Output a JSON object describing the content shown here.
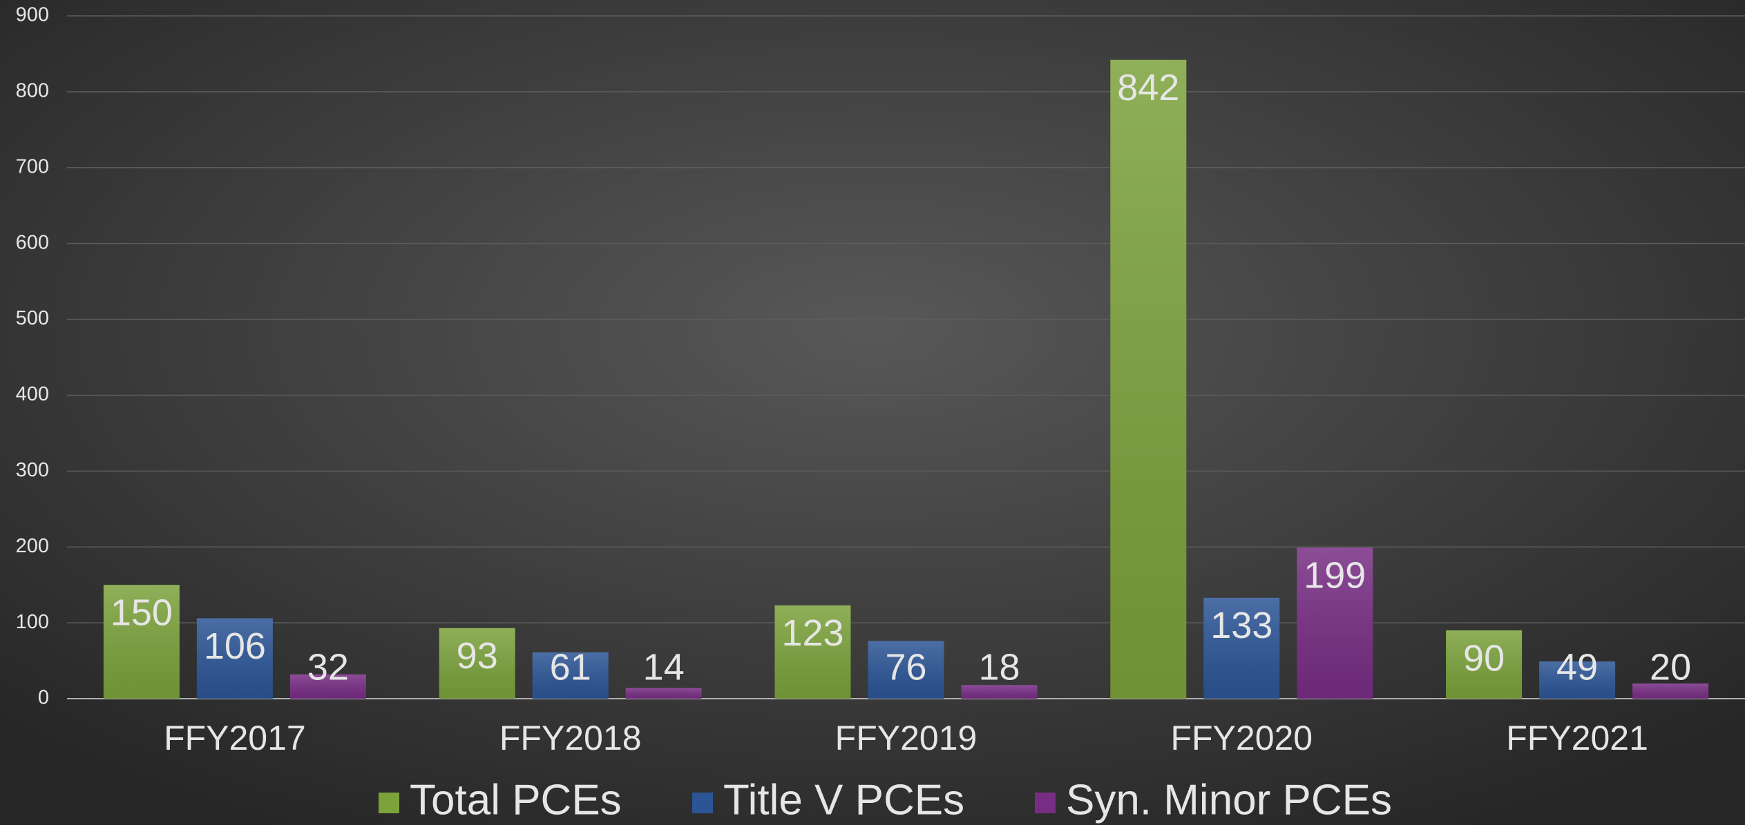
{
  "chart_data": {
    "type": "bar",
    "categories": [
      "FFY2017",
      "FFY2018",
      "FFY2019",
      "FFY2020",
      "FFY2021"
    ],
    "series": [
      {
        "name": "Total PCEs",
        "color": "#7ba23b",
        "values": [
          150,
          93,
          123,
          842,
          90
        ]
      },
      {
        "name": "Title V PCEs",
        "color": "#2c5596",
        "values": [
          106,
          61,
          76,
          133,
          49
        ]
      },
      {
        "name": "Syn. Minor PCEs",
        "color": "#782d84",
        "values": [
          32,
          14,
          18,
          199,
          20
        ]
      }
    ],
    "ylim": [
      0,
      900
    ],
    "yticks": [
      0,
      100,
      200,
      300,
      400,
      500,
      600,
      700,
      800,
      900
    ],
    "grid": true,
    "legend": "bottom"
  }
}
